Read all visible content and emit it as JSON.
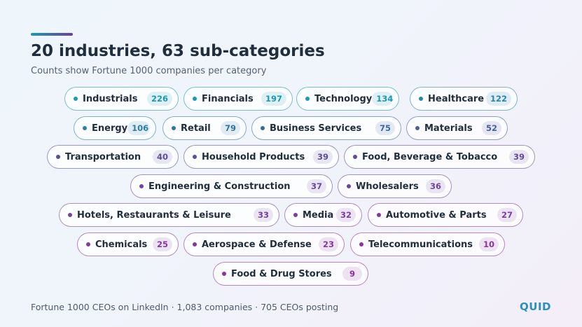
{
  "header": {
    "title": "20 industries, 63 sub-categories",
    "subtitle": "Counts show Fortune 1000 companies per category"
  },
  "categories": [
    {
      "label": "Industrials",
      "count": "226",
      "color": "#1a98b4"
    },
    {
      "label": "Financials",
      "count": "197",
      "color": "#1a98b4"
    },
    {
      "label": "Technology",
      "count": "134",
      "color": "#1a98b4"
    },
    {
      "label": "Healthcare",
      "count": "122",
      "color": "#2a86a8"
    },
    {
      "label": "Energy",
      "count": "106",
      "color": "#2a7ea8"
    },
    {
      "label": "Retail",
      "count": "79",
      "color": "#3273a5"
    },
    {
      "label": "Business Services",
      "count": "75",
      "color": "#3c67a2"
    },
    {
      "label": "Materials",
      "count": "52",
      "color": "#465d9f"
    },
    {
      "label": "Transportation",
      "count": "40",
      "color": "#5b4f9c"
    },
    {
      "label": "Household Products",
      "count": "39",
      "color": "#5f4d9b"
    },
    {
      "label": "Food, Beverage & Tobacco",
      "count": "39",
      "color": "#634a9b"
    },
    {
      "label": "Engineering & Construction",
      "count": "37",
      "color": "#6c469c"
    },
    {
      "label": "Wholesalers",
      "count": "36",
      "color": "#6c469c"
    },
    {
      "label": "Hotels, Restaurants & Leisure",
      "count": "33",
      "color": "#75429d"
    },
    {
      "label": "Media",
      "count": "32",
      "color": "#7a3f9e"
    },
    {
      "label": "Automotive & Parts",
      "count": "27",
      "color": "#7e3c9f"
    },
    {
      "label": "Chemicals",
      "count": "25",
      "color": "#83399f"
    },
    {
      "label": "Aerospace & Defense",
      "count": "23",
      "color": "#8537a0"
    },
    {
      "label": "Telecommunications",
      "count": "10",
      "color": "#8a34a0"
    },
    {
      "label": "Food & Drug Stores",
      "count": "9",
      "color": "#8d32a1"
    }
  ],
  "footer": {
    "text": "Fortune 1000 CEOs on LinkedIn · 1,083 companies · 705 CEOs posting",
    "brand": "QUID"
  }
}
